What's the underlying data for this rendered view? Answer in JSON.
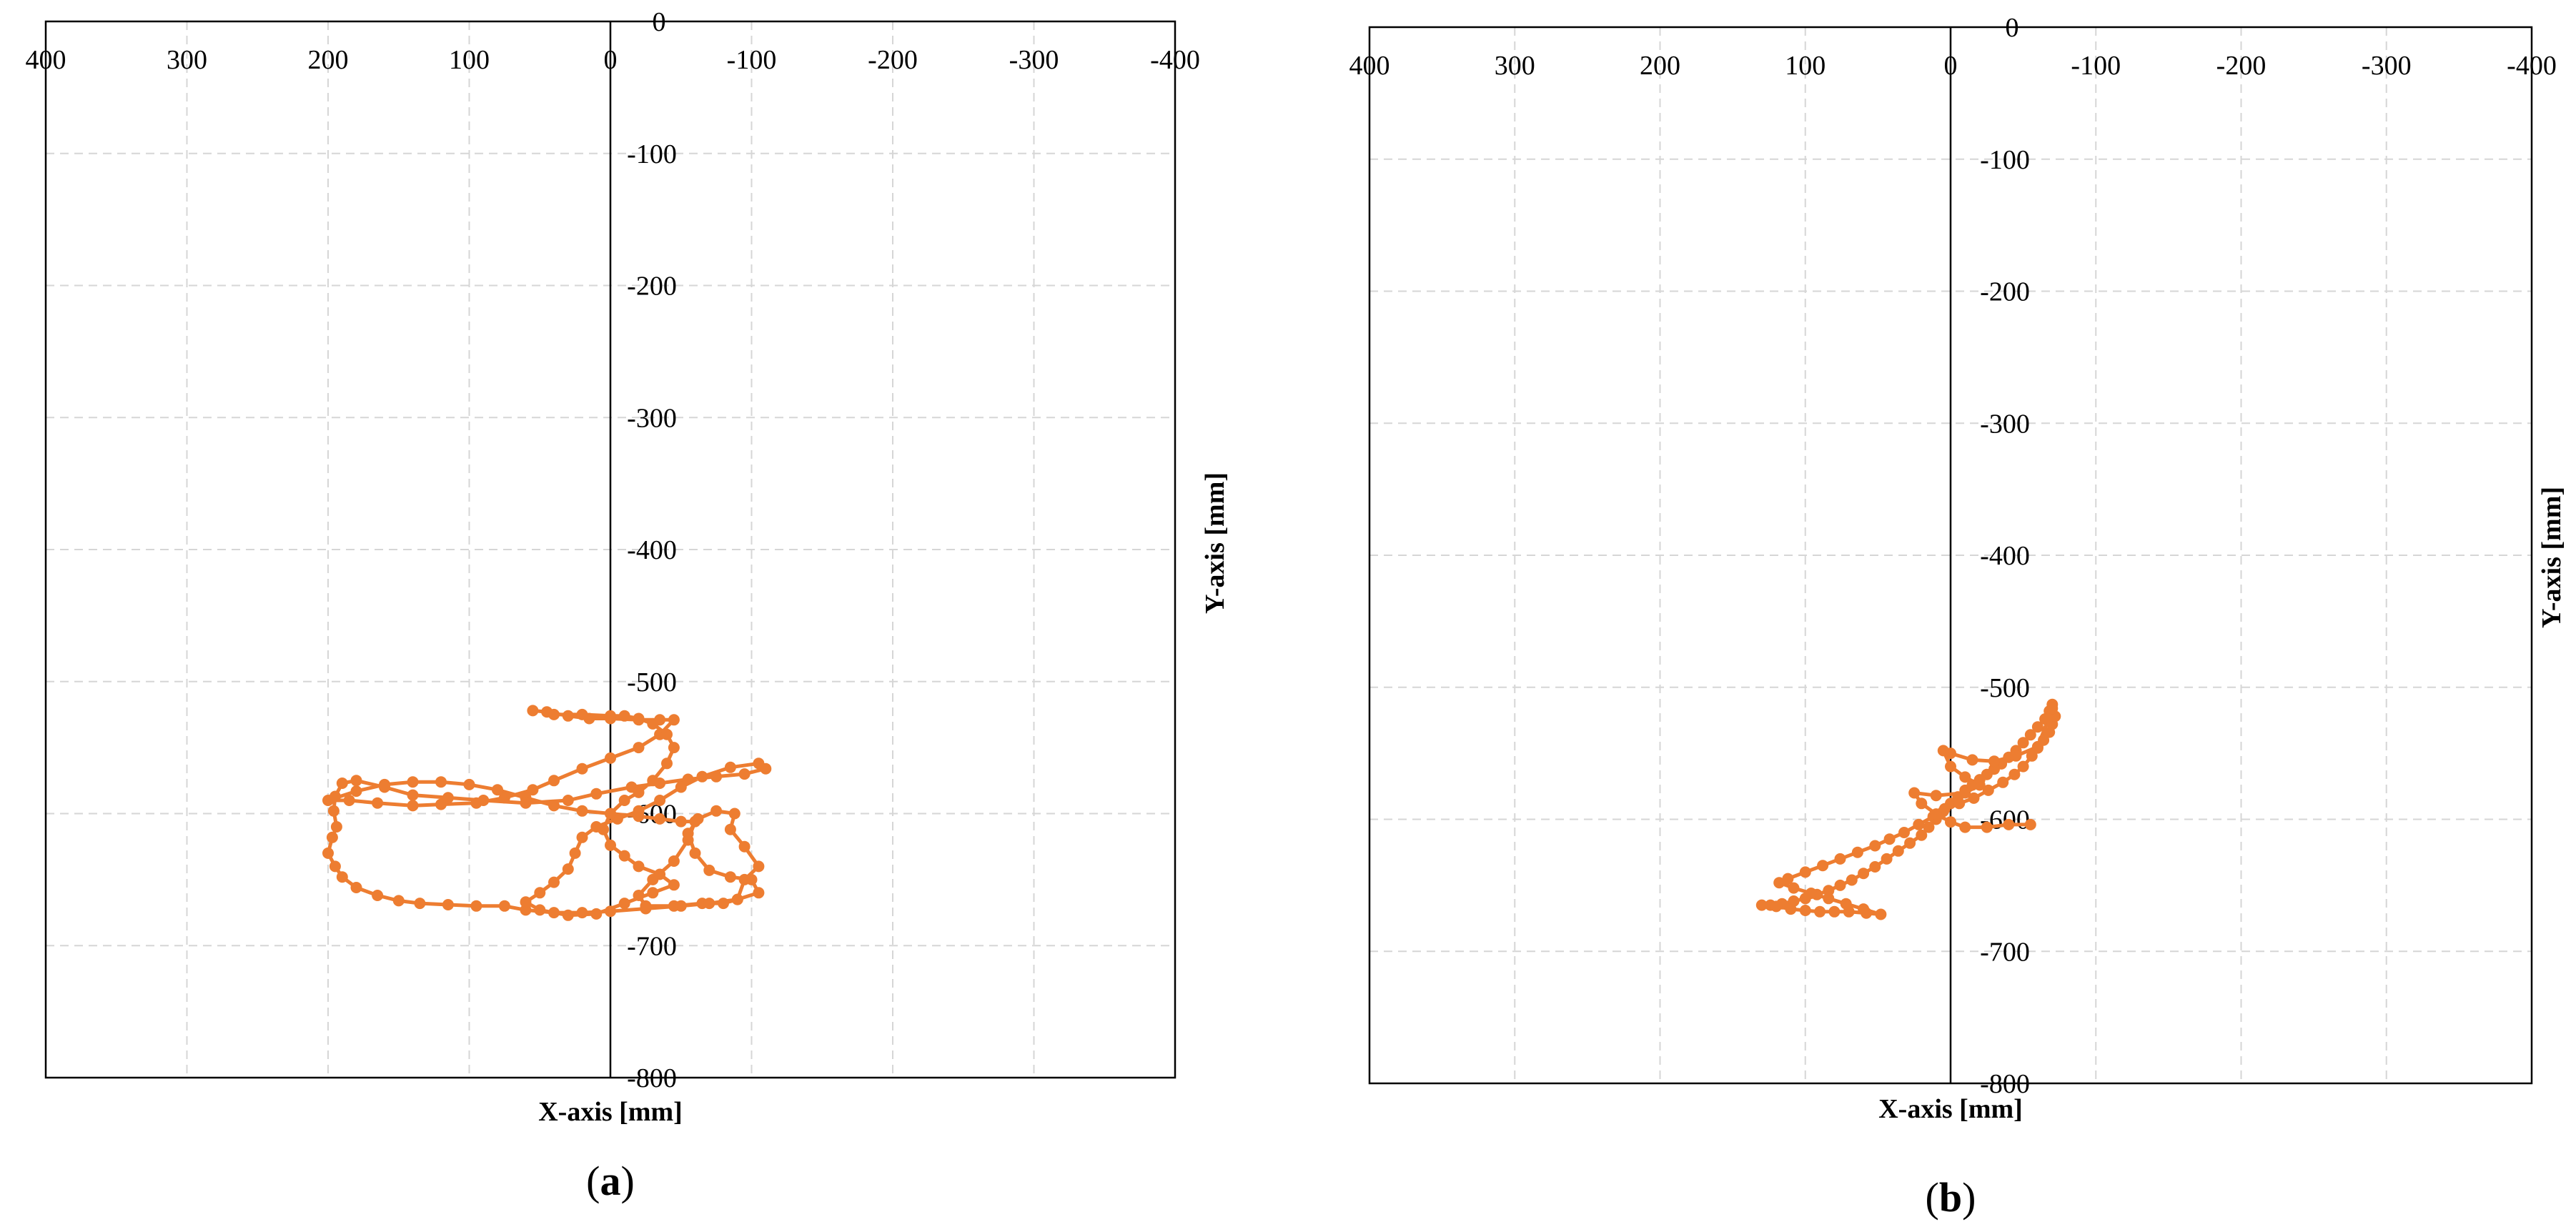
{
  "chart_data": [
    {
      "type": "scatter",
      "panel_label": "a",
      "xlabel": "X-axis [mm]",
      "ylabel": "Y-axis [mm]",
      "xlim": [
        400,
        -400
      ],
      "ylim": [
        0,
        -800
      ],
      "x_reversed": true,
      "xticks": [
        400,
        300,
        200,
        100,
        0,
        -100,
        -200,
        -300,
        -400
      ],
      "yticks": [
        0,
        -100,
        -200,
        -300,
        -400,
        -500,
        -600,
        -700,
        -800
      ],
      "grid": true,
      "color": "#ED7D31",
      "series": [
        {
          "points": [
            [
              55,
              -522
            ],
            [
              45,
              -523
            ],
            [
              30,
              -526
            ],
            [
              15,
              -528
            ],
            [
              0,
              -528
            ],
            [
              -20,
              -529
            ],
            [
              -35,
              -529
            ],
            [
              -45,
              -529
            ],
            [
              -35,
              -540
            ],
            [
              -20,
              -550
            ],
            [
              0,
              -558
            ],
            [
              20,
              -566
            ],
            [
              40,
              -575
            ],
            [
              55,
              -582
            ],
            [
              75,
              -588
            ],
            [
              95,
              -592
            ],
            [
              120,
              -593
            ],
            [
              140,
              -594
            ],
            [
              165,
              -592
            ],
            [
              185,
              -590
            ],
            [
              200,
              -590
            ],
            [
              180,
              -583
            ],
            [
              160,
              -578
            ],
            [
              140,
              -576
            ],
            [
              120,
              -576
            ],
            [
              100,
              -578
            ],
            [
              80,
              -582
            ],
            [
              60,
              -588
            ],
            [
              40,
              -594
            ],
            [
              20,
              -598
            ],
            [
              0,
              -600
            ],
            [
              -20,
              -602
            ],
            [
              -35,
              -604
            ],
            [
              -50,
              -606
            ],
            [
              -60,
              -606
            ],
            [
              -55,
              -620
            ],
            [
              -45,
              -636
            ],
            [
              -30,
              -650
            ],
            [
              -20,
              -662
            ],
            [
              -25,
              -670
            ],
            [
              -45,
              -670
            ],
            [
              -65,
              -668
            ],
            [
              -80,
              -668
            ],
            [
              -90,
              -665
            ],
            [
              -95,
              -650
            ],
            [
              -105,
              -640
            ],
            [
              -95,
              -625
            ],
            [
              -85,
              -612
            ],
            [
              -88,
              -600
            ],
            [
              -75,
              -598
            ],
            [
              -62,
              -604
            ],
            [
              -55,
              -615
            ],
            [
              -60,
              -630
            ],
            [
              -70,
              -643
            ],
            [
              -85,
              -648
            ],
            [
              -100,
              -650
            ],
            [
              -105,
              -660
            ],
            [
              -90,
              -665
            ],
            [
              -70,
              -668
            ],
            [
              -50,
              -670
            ],
            [
              -25,
              -672
            ],
            [
              0,
              -674
            ],
            [
              20,
              -675
            ],
            [
              40,
              -675
            ],
            [
              60,
              -673
            ],
            [
              75,
              -670
            ],
            [
              95,
              -670
            ],
            [
              115,
              -669
            ],
            [
              135,
              -668
            ],
            [
              150,
              -666
            ],
            [
              165,
              -662
            ],
            [
              180,
              -656
            ],
            [
              190,
              -648
            ],
            [
              195,
              -640
            ],
            [
              200,
              -630
            ],
            [
              197,
              -618
            ],
            [
              194,
              -610
            ],
            [
              196,
              -598
            ],
            [
              195,
              -587
            ],
            [
              190,
              -577
            ],
            [
              180,
              -575
            ],
            [
              160,
              -580
            ],
            [
              140,
              -586
            ],
            [
              115,
              -588
            ],
            [
              90,
              -590
            ],
            [
              60,
              -592
            ],
            [
              30,
              -590
            ],
            [
              10,
              -585
            ],
            [
              -15,
              -580
            ],
            [
              -35,
              -577
            ],
            [
              -55,
              -574
            ],
            [
              -75,
              -572
            ],
            [
              -95,
              -570
            ],
            [
              -110,
              -566
            ],
            [
              -105,
              -562
            ],
            [
              -85,
              -565
            ],
            [
              -65,
              -572
            ],
            [
              -50,
              -580
            ],
            [
              -35,
              -590
            ],
            [
              -20,
              -598
            ],
            [
              -5,
              -604
            ],
            [
              10,
              -610
            ],
            [
              20,
              -618
            ],
            [
              25,
              -630
            ],
            [
              30,
              -642
            ],
            [
              40,
              -652
            ],
            [
              50,
              -660
            ],
            [
              60,
              -667
            ],
            [
              50,
              -673
            ],
            [
              30,
              -677
            ],
            [
              10,
              -676
            ],
            [
              -10,
              -668
            ],
            [
              -30,
              -660
            ],
            [
              -45,
              -654
            ],
            [
              -35,
              -646
            ],
            [
              -20,
              -640
            ],
            [
              -10,
              -632
            ],
            [
              0,
              -624
            ],
            [
              5,
              -612
            ],
            [
              0,
              -600
            ],
            [
              -10,
              -590
            ],
            [
              -20,
              -584
            ],
            [
              -30,
              -575
            ],
            [
              -40,
              -562
            ],
            [
              -45,
              -550
            ],
            [
              -40,
              -540
            ],
            [
              -30,
              -532
            ],
            [
              -20,
              -528
            ],
            [
              -10,
              -526
            ],
            [
              0,
              -526
            ],
            [
              20,
              -525
            ],
            [
              40,
              -525
            ]
          ]
        }
      ]
    },
    {
      "type": "scatter",
      "panel_label": "b",
      "xlabel": "X-axis [mm]",
      "ylabel": "Y-axis [mm]",
      "xlim": [
        400,
        -400
      ],
      "ylim": [
        0,
        -800
      ],
      "x_reversed": true,
      "xticks": [
        400,
        300,
        200,
        100,
        0,
        -100,
        -200,
        -300,
        -400
      ],
      "yticks": [
        0,
        -100,
        -200,
        -300,
        -400,
        -500,
        -600,
        -700,
        -800
      ],
      "grid": true,
      "color": "#ED7D31",
      "series": [
        {
          "points": [
            [
              -70,
              -513
            ],
            [
              -68,
              -518
            ],
            [
              -65,
              -524
            ],
            [
              -60,
              -530
            ],
            [
              -55,
              -536
            ],
            [
              -50,
              -542
            ],
            [
              -45,
              -548
            ],
            [
              -40,
              -553
            ],
            [
              -35,
              -558
            ],
            [
              -30,
              -562
            ],
            [
              -25,
              -566
            ],
            [
              -20,
              -570
            ],
            [
              -15,
              -574
            ],
            [
              -10,
              -578
            ],
            [
              -5,
              -583
            ],
            [
              0,
              -588
            ],
            [
              5,
              -594
            ],
            [
              10,
              -600
            ],
            [
              15,
              -606
            ],
            [
              20,
              -612
            ],
            [
              28,
              -618
            ],
            [
              36,
              -624
            ],
            [
              44,
              -630
            ],
            [
              52,
              -636
            ],
            [
              60,
              -641
            ],
            [
              68,
              -646
            ],
            [
              76,
              -650
            ],
            [
              84,
              -654
            ],
            [
              92,
              -657
            ],
            [
              100,
              -660
            ],
            [
              108,
              -662
            ],
            [
              116,
              -664
            ],
            [
              124,
              -665
            ],
            [
              130,
              -665
            ],
            [
              120,
              -666
            ],
            [
              110,
              -668
            ],
            [
              100,
              -669
            ],
            [
              90,
              -670
            ],
            [
              80,
              -670
            ],
            [
              70,
              -670
            ],
            [
              58,
              -671
            ],
            [
              48,
              -672
            ],
            [
              60,
              -668
            ],
            [
              72,
              -664
            ],
            [
              84,
              -660
            ],
            [
              96,
              -656
            ],
            [
              108,
              -652
            ],
            [
              118,
              -648
            ],
            [
              112,
              -645
            ],
            [
              100,
              -640
            ],
            [
              88,
              -635
            ],
            [
              76,
              -630
            ],
            [
              64,
              -625
            ],
            [
              52,
              -620
            ],
            [
              42,
              -615
            ],
            [
              32,
              -610
            ],
            [
              22,
              -604
            ],
            [
              12,
              -598
            ],
            [
              4,
              -592
            ],
            [
              -6,
              -588
            ],
            [
              -16,
              -584
            ],
            [
              -26,
              -578
            ],
            [
              -36,
              -572
            ],
            [
              -44,
              -566
            ],
            [
              -50,
              -560
            ],
            [
              -56,
              -552
            ],
            [
              -60,
              -546
            ],
            [
              -64,
              -540
            ],
            [
              -68,
              -534
            ],
            [
              -70,
              -528
            ],
            [
              -72,
              -522
            ],
            [
              -70,
              -516
            ],
            [
              -60,
              -545
            ],
            [
              -45,
              -552
            ],
            [
              -30,
              -556
            ],
            [
              -15,
              -555
            ],
            [
              0,
              -550
            ],
            [
              5,
              -548
            ],
            [
              0,
              -560
            ],
            [
              -10,
              -568
            ],
            [
              -20,
              -574
            ],
            [
              -10,
              -580
            ],
            [
              10,
              -582
            ],
            [
              25,
              -580
            ],
            [
              20,
              -588
            ],
            [
              10,
              -596
            ],
            [
              0,
              -602
            ],
            [
              -10,
              -606
            ],
            [
              -25,
              -606
            ],
            [
              -40,
              -604
            ],
            [
              -55,
              -604
            ]
          ]
        }
      ]
    }
  ]
}
